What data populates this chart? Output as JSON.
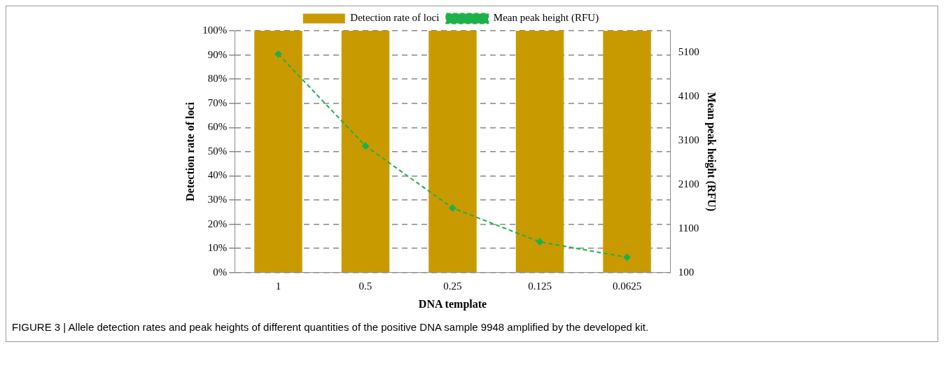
{
  "chart_data": {
    "type": "bar",
    "categories": [
      "1",
      "0.5",
      "0.25",
      "0.125",
      "0.0625"
    ],
    "series": [
      {
        "name": "Detection rate of loci",
        "color": "#c99a00",
        "values": [
          100,
          100,
          100,
          100,
          100
        ]
      },
      {
        "name": "Mean peak height (RFU)",
        "type": "line",
        "axis": "y2",
        "color": "#1db14a",
        "values": [
          5070,
          2980,
          1570,
          800,
          450
        ],
        "marker": "diamond",
        "line_style": "dashed"
      }
    ],
    "xlabel": "DNA template",
    "ylabel": "Detection rate of loci",
    "y2label": "Mean peak height (RFU)",
    "ylim": [
      0,
      100
    ],
    "yticks": [
      {
        "value": 0,
        "label": "0%"
      },
      {
        "value": 10,
        "label": "10%"
      },
      {
        "value": 20,
        "label": "20%"
      },
      {
        "value": 30,
        "label": "30%"
      },
      {
        "value": 40,
        "label": "40%"
      },
      {
        "value": 50,
        "label": "50%"
      },
      {
        "value": 60,
        "label": "60%"
      },
      {
        "value": 70,
        "label": "70%"
      },
      {
        "value": 80,
        "label": "80%"
      },
      {
        "value": 90,
        "label": "90%"
      },
      {
        "value": 100,
        "label": "100%"
      }
    ],
    "y2lim": [
      100,
      5600
    ],
    "y2ticks": [
      100,
      1100,
      2100,
      3100,
      4100,
      5100
    ],
    "grid": "y",
    "legend": "top",
    "annotations": [
      "FIGURE 3 | Allele detection rates and peak heights of different quantities of the positive DNA sample 9948 amplified by the developed kit."
    ]
  }
}
